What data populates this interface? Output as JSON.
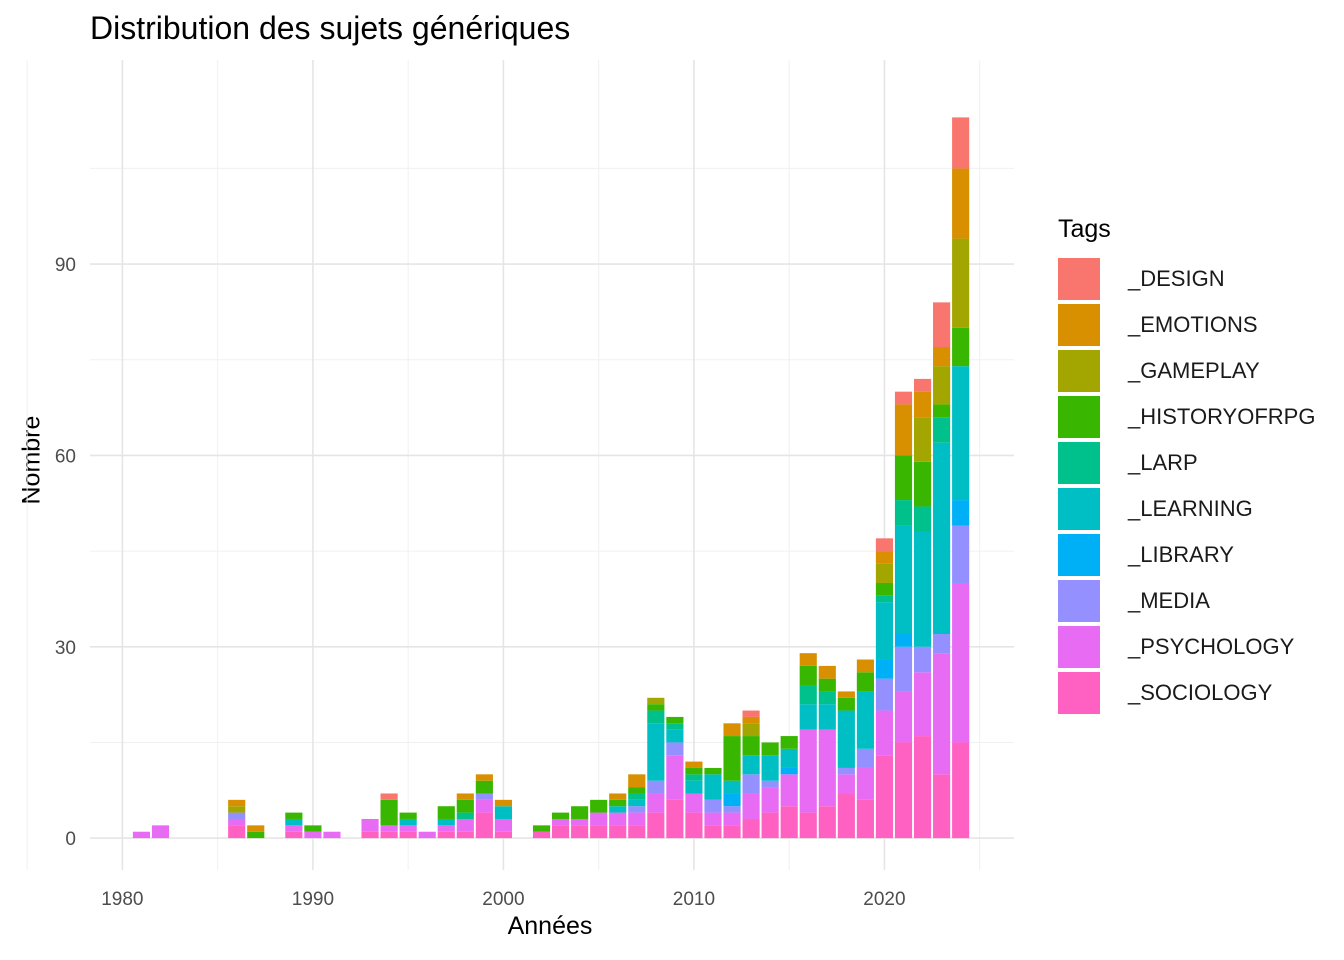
{
  "chart_data": {
    "type": "bar",
    "stacked": true,
    "title": "Distribution des sujets génériques",
    "xlabel": "Années",
    "ylabel": "Nombre",
    "xlim": [
      1978.3,
      2026.8
    ],
    "ylim": [
      -5,
      122
    ],
    "xticks": [
      1980,
      1990,
      2000,
      2010,
      2020
    ],
    "yticks": [
      0,
      30,
      60,
      90
    ],
    "grid": true,
    "legend_title": "Tags",
    "legend_position": "right",
    "series": [
      {
        "name": "_SOCIOLOGY",
        "color": "#FF61C3"
      },
      {
        "name": "_PSYCHOLOGY",
        "color": "#E76BF3"
      },
      {
        "name": "_MEDIA",
        "color": "#9590FF"
      },
      {
        "name": "_LIBRARY",
        "color": "#00B0F6"
      },
      {
        "name": "_LEARNING",
        "color": "#00BFC4"
      },
      {
        "name": "_LARP",
        "color": "#00C08B"
      },
      {
        "name": "_HISTORYOFRPG",
        "color": "#39B600"
      },
      {
        "name": "_GAMEPLAY",
        "color": "#A3A500"
      },
      {
        "name": "_EMOTIONS",
        "color": "#D89000"
      },
      {
        "name": "_DESIGN",
        "color": "#F8766D"
      }
    ],
    "legend_order": [
      "_DESIGN",
      "_EMOTIONS",
      "_GAMEPLAY",
      "_HISTORYOFRPG",
      "_LARP",
      "_LEARNING",
      "_LIBRARY",
      "_MEDIA",
      "_PSYCHOLOGY",
      "_SOCIOLOGY"
    ],
    "bars": [
      {
        "year": 1981,
        "values": [
          0,
          1,
          0,
          0,
          0,
          0,
          0,
          0,
          0,
          0
        ]
      },
      {
        "year": 1982,
        "values": [
          0,
          2,
          0,
          0,
          0,
          0,
          0,
          0,
          0,
          0
        ]
      },
      {
        "year": 1986,
        "values": [
          2,
          1,
          1,
          0,
          0,
          0,
          0,
          1,
          1,
          0
        ]
      },
      {
        "year": 1987,
        "values": [
          0,
          0,
          0,
          0,
          0,
          0,
          1,
          0,
          1,
          0
        ]
      },
      {
        "year": 1989,
        "values": [
          1,
          1,
          0,
          0,
          1,
          0,
          1,
          0,
          0,
          0
        ]
      },
      {
        "year": 1990,
        "values": [
          0,
          1,
          0,
          0,
          0,
          0,
          1,
          0,
          0,
          0
        ]
      },
      {
        "year": 1991,
        "values": [
          0,
          1,
          0,
          0,
          0,
          0,
          0,
          0,
          0,
          0
        ]
      },
      {
        "year": 1993,
        "values": [
          1,
          2,
          0,
          0,
          0,
          0,
          0,
          0,
          0,
          0
        ]
      },
      {
        "year": 1994,
        "values": [
          1,
          1,
          0,
          0,
          0,
          0,
          4,
          0,
          0,
          1
        ]
      },
      {
        "year": 1995,
        "values": [
          1,
          1,
          0,
          0,
          1,
          0,
          1,
          0,
          0,
          0
        ]
      },
      {
        "year": 1996,
        "values": [
          0,
          1,
          0,
          0,
          0,
          0,
          0,
          0,
          0,
          0
        ]
      },
      {
        "year": 1997,
        "values": [
          1,
          1,
          0,
          0,
          1,
          0,
          2,
          0,
          0,
          0
        ]
      },
      {
        "year": 1998,
        "values": [
          1,
          2,
          0,
          0,
          0,
          1,
          2,
          0,
          1,
          0
        ]
      },
      {
        "year": 1999,
        "values": [
          4,
          2,
          1,
          0,
          0,
          0,
          2,
          0,
          1,
          0
        ]
      },
      {
        "year": 2000,
        "values": [
          1,
          2,
          0,
          0,
          2,
          0,
          0,
          0,
          1,
          0
        ]
      },
      {
        "year": 2002,
        "values": [
          1,
          0,
          0,
          0,
          0,
          0,
          1,
          0,
          0,
          0
        ]
      },
      {
        "year": 2003,
        "values": [
          2,
          1,
          0,
          0,
          0,
          0,
          1,
          0,
          0,
          0
        ]
      },
      {
        "year": 2004,
        "values": [
          2,
          1,
          0,
          0,
          0,
          0,
          2,
          0,
          0,
          0
        ]
      },
      {
        "year": 2005,
        "values": [
          2,
          2,
          0,
          0,
          0,
          0,
          2,
          0,
          0,
          0
        ]
      },
      {
        "year": 2006,
        "values": [
          2,
          2,
          0,
          0,
          1,
          0,
          1,
          0,
          1,
          0
        ]
      },
      {
        "year": 2007,
        "values": [
          2,
          2,
          1,
          0,
          1,
          1,
          1,
          0,
          2,
          0
        ]
      },
      {
        "year": 2008,
        "values": [
          4,
          3,
          2,
          0,
          9,
          2,
          1,
          1,
          0,
          0
        ]
      },
      {
        "year": 2009,
        "values": [
          6,
          7,
          2,
          0,
          2,
          1,
          1,
          0,
          0,
          0
        ]
      },
      {
        "year": 2010,
        "values": [
          4,
          3,
          0,
          0,
          2,
          1,
          1,
          0,
          1,
          0
        ]
      },
      {
        "year": 2011,
        "values": [
          2,
          2,
          2,
          0,
          4,
          0,
          1,
          0,
          0,
          0
        ]
      },
      {
        "year": 2012,
        "values": [
          2,
          2,
          1,
          2,
          2,
          0,
          7,
          0,
          2,
          0
        ]
      },
      {
        "year": 2013,
        "values": [
          3,
          4,
          3,
          0,
          3,
          0,
          3,
          2,
          1,
          1
        ]
      },
      {
        "year": 2014,
        "values": [
          4,
          4,
          1,
          0,
          4,
          0,
          2,
          0,
          0,
          0
        ]
      },
      {
        "year": 2015,
        "values": [
          5,
          5,
          0,
          1,
          3,
          0,
          2,
          0,
          0,
          0
        ]
      },
      {
        "year": 2016,
        "values": [
          4,
          13,
          0,
          0,
          4,
          3,
          3,
          0,
          2,
          0
        ]
      },
      {
        "year": 2017,
        "values": [
          5,
          12,
          0,
          0,
          4,
          2,
          2,
          0,
          2,
          0
        ]
      },
      {
        "year": 2018,
        "values": [
          7,
          3,
          1,
          0,
          9,
          0,
          2,
          0,
          1,
          0
        ]
      },
      {
        "year": 2019,
        "values": [
          6,
          5,
          3,
          0,
          9,
          0,
          3,
          0,
          2,
          0
        ]
      },
      {
        "year": 2020,
        "values": [
          13,
          7,
          5,
          3,
          9,
          1,
          2,
          3,
          2,
          2
        ]
      },
      {
        "year": 2021,
        "values": [
          15,
          8,
          7,
          2,
          17,
          4,
          7,
          0,
          8,
          2
        ]
      },
      {
        "year": 2022,
        "values": [
          16,
          10,
          4,
          0,
          18,
          4,
          7,
          7,
          4,
          2
        ]
      },
      {
        "year": 2023,
        "values": [
          10,
          19,
          3,
          0,
          30,
          4,
          2,
          6,
          3,
          7
        ]
      },
      {
        "year": 2024,
        "values": [
          15,
          25,
          9,
          4,
          21,
          0,
          6,
          14,
          11,
          8
        ]
      }
    ]
  }
}
